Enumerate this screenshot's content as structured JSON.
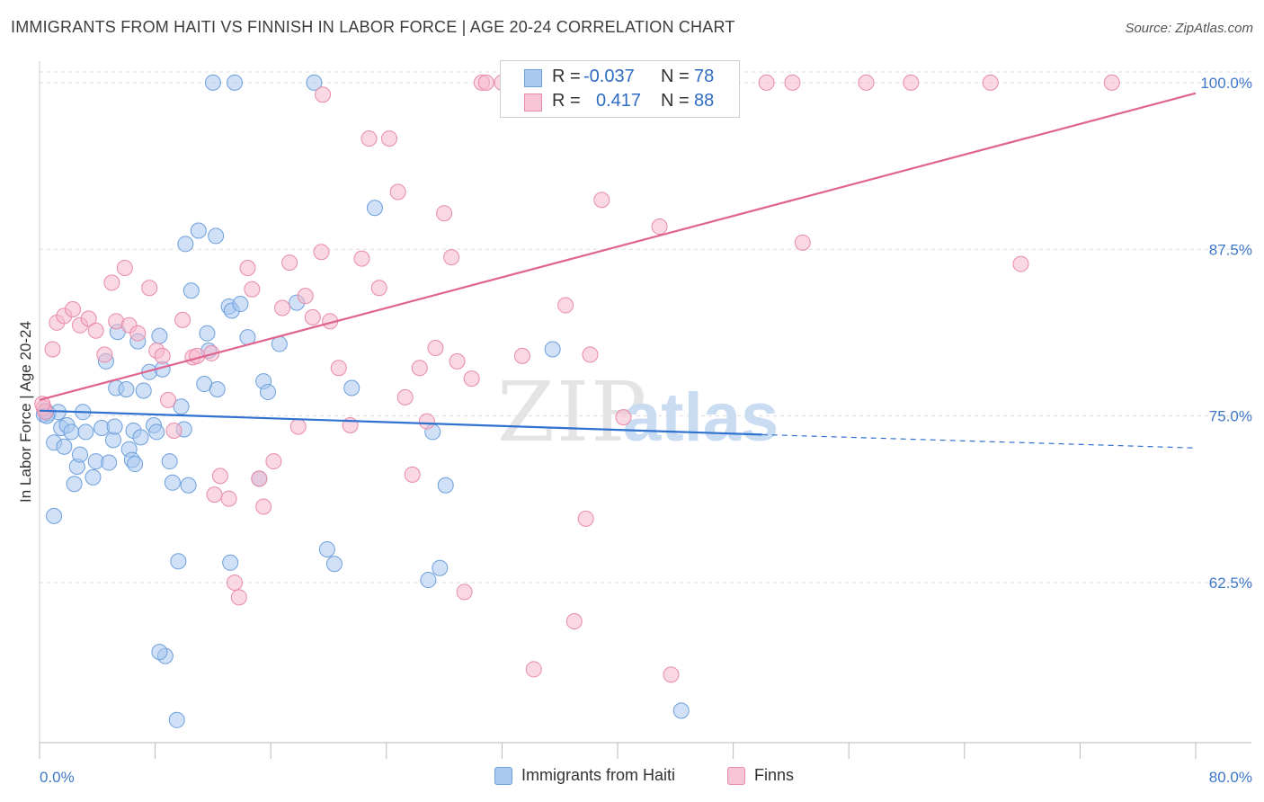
{
  "title": "IMMIGRANTS FROM HAITI VS FINNISH IN LABOR FORCE | AGE 20-24 CORRELATION CHART",
  "source": "Source: ZipAtlas.com",
  "watermark": {
    "zip": "ZIP",
    "atlas": "atlas"
  },
  "colors": {
    "blue_fill": "#aac8f0",
    "blue_stroke": "#6d9fdc",
    "blue_line": "#2f72d0",
    "pink_fill": "#f6b8cc",
    "pink_stroke": "#e88aa8",
    "pink_line": "#e0648d",
    "tick_label": "#3f77c8",
    "grid": "#dddddd"
  },
  "stats_box": {
    "rows": [
      {
        "r_label": "R =",
        "r_value": "-0.037",
        "n_label": "N =",
        "n_value": "78"
      },
      {
        "r_label": "R =",
        "r_value": "0.417",
        "n_label": "N =",
        "n_value": "88"
      }
    ]
  },
  "chart_data": {
    "type": "scatter",
    "xlabel": "",
    "ylabel": "In Labor Force | Age 20-24",
    "xlim": [
      0,
      80
    ],
    "ylim": [
      50.5,
      100.8
    ],
    "x_tick_labels": [
      "0.0%",
      "80.0%"
    ],
    "y_ticks": [
      62.5,
      75.0,
      87.5,
      100.0
    ],
    "y_tick_labels": [
      "62.5%",
      "75.0%",
      "87.5%",
      "100.0%"
    ],
    "grid": "horizontal dashed",
    "legend_placement": "bottom-center",
    "series": [
      {
        "name": "Immigrants from Haiti",
        "trend": {
          "x": [
            0,
            50
          ],
          "y": [
            75.4,
            73.6
          ],
          "dashed_to": [
            80,
            72.6
          ]
        },
        "points": [
          [
            0.3,
            75.1
          ],
          [
            0.4,
            75.4
          ],
          [
            0.6,
            75.2
          ],
          [
            1.0,
            67.5
          ],
          [
            1.0,
            73.0
          ],
          [
            1.3,
            75.3
          ],
          [
            1.5,
            74.1
          ],
          [
            1.7,
            72.7
          ],
          [
            1.9,
            74.3
          ],
          [
            2.2,
            73.8
          ],
          [
            2.4,
            69.9
          ],
          [
            2.6,
            71.2
          ],
          [
            2.8,
            72.1
          ],
          [
            3.0,
            75.3
          ],
          [
            3.2,
            73.8
          ],
          [
            3.7,
            70.4
          ],
          [
            3.9,
            71.6
          ],
          [
            4.3,
            74.1
          ],
          [
            4.6,
            79.1
          ],
          [
            4.8,
            71.5
          ],
          [
            5.1,
            73.2
          ],
          [
            5.2,
            74.2
          ],
          [
            5.4,
            81.3
          ],
          [
            5.3,
            77.1
          ],
          [
            6.0,
            77.0
          ],
          [
            6.2,
            72.5
          ],
          [
            6.4,
            71.7
          ],
          [
            6.5,
            73.9
          ],
          [
            6.6,
            71.4
          ],
          [
            6.8,
            80.6
          ],
          [
            7.0,
            73.4
          ],
          [
            7.2,
            76.9
          ],
          [
            7.6,
            78.3
          ],
          [
            7.9,
            74.3
          ],
          [
            8.1,
            73.8
          ],
          [
            8.3,
            81.0
          ],
          [
            8.5,
            78.5
          ],
          [
            8.7,
            57.0
          ],
          [
            9.0,
            71.6
          ],
          [
            9.2,
            70.0
          ],
          [
            9.6,
            64.1
          ],
          [
            9.8,
            75.7
          ],
          [
            10.0,
            74.0
          ],
          [
            10.1,
            87.9
          ],
          [
            10.3,
            69.8
          ],
          [
            10.5,
            84.4
          ],
          [
            11.0,
            88.9
          ],
          [
            11.4,
            77.4
          ],
          [
            11.6,
            81.2
          ],
          [
            11.7,
            79.9
          ],
          [
            12.2,
            88.5
          ],
          [
            12.3,
            77.0
          ],
          [
            13.1,
            83.2
          ],
          [
            13.2,
            64.0
          ],
          [
            13.3,
            82.9
          ],
          [
            13.9,
            83.4
          ],
          [
            14.4,
            80.9
          ],
          [
            15.2,
            70.3
          ],
          [
            15.5,
            77.6
          ],
          [
            15.8,
            76.8
          ],
          [
            16.6,
            80.4
          ],
          [
            17.8,
            83.5
          ],
          [
            19.9,
            65.0
          ],
          [
            20.4,
            63.9
          ],
          [
            21.6,
            77.1
          ],
          [
            23.2,
            90.6
          ],
          [
            26.9,
            62.7
          ],
          [
            27.2,
            73.8
          ],
          [
            27.7,
            63.6
          ],
          [
            28.1,
            69.8
          ],
          [
            35.5,
            80.0
          ],
          [
            8.3,
            57.3
          ],
          [
            9.5,
            52.2
          ],
          [
            44.4,
            52.9
          ],
          [
            12.0,
            100.0
          ],
          [
            13.5,
            100.0
          ],
          [
            19.0,
            100.0
          ],
          [
            0.5,
            75.0
          ]
        ]
      },
      {
        "name": "Finns",
        "trend": {
          "x": [
            0,
            80
          ],
          "y": [
            76.2,
            99.2
          ]
        },
        "points": [
          [
            0.3,
            75.6
          ],
          [
            0.4,
            75.3
          ],
          [
            0.9,
            80.0
          ],
          [
            1.2,
            82.0
          ],
          [
            1.7,
            82.5
          ],
          [
            2.3,
            83.0
          ],
          [
            2.8,
            81.8
          ],
          [
            3.4,
            82.3
          ],
          [
            3.9,
            81.4
          ],
          [
            4.5,
            79.6
          ],
          [
            5.0,
            85.0
          ],
          [
            5.3,
            82.1
          ],
          [
            5.9,
            86.1
          ],
          [
            6.2,
            81.8
          ],
          [
            6.8,
            81.2
          ],
          [
            7.6,
            84.6
          ],
          [
            8.1,
            79.9
          ],
          [
            8.5,
            79.5
          ],
          [
            8.9,
            76.2
          ],
          [
            9.3,
            73.9
          ],
          [
            9.9,
            82.2
          ],
          [
            10.6,
            79.4
          ],
          [
            10.9,
            79.5
          ],
          [
            11.9,
            79.7
          ],
          [
            12.1,
            69.1
          ],
          [
            12.5,
            70.5
          ],
          [
            13.1,
            68.8
          ],
          [
            13.8,
            61.4
          ],
          [
            14.4,
            86.1
          ],
          [
            14.7,
            84.5
          ],
          [
            15.2,
            70.3
          ],
          [
            15.5,
            68.2
          ],
          [
            16.2,
            71.6
          ],
          [
            16.8,
            83.1
          ],
          [
            17.3,
            86.5
          ],
          [
            17.9,
            74.2
          ],
          [
            18.4,
            84.0
          ],
          [
            18.9,
            82.4
          ],
          [
            19.5,
            87.3
          ],
          [
            20.1,
            82.1
          ],
          [
            20.7,
            78.6
          ],
          [
            21.5,
            74.3
          ],
          [
            22.3,
            86.8
          ],
          [
            22.8,
            95.8
          ],
          [
            23.5,
            84.6
          ],
          [
            24.2,
            95.8
          ],
          [
            24.8,
            91.8
          ],
          [
            25.3,
            76.4
          ],
          [
            25.8,
            70.6
          ],
          [
            26.3,
            78.6
          ],
          [
            26.8,
            74.6
          ],
          [
            27.4,
            80.1
          ],
          [
            28.0,
            90.2
          ],
          [
            28.5,
            86.9
          ],
          [
            28.9,
            79.1
          ],
          [
            29.4,
            61.8
          ],
          [
            29.9,
            77.8
          ],
          [
            33.4,
            79.5
          ],
          [
            34.2,
            56.0
          ],
          [
            36.4,
            83.3
          ],
          [
            37.0,
            59.6
          ],
          [
            37.8,
            67.3
          ],
          [
            38.1,
            79.6
          ],
          [
            38.9,
            91.2
          ],
          [
            40.4,
            74.9
          ],
          [
            42.9,
            89.2
          ],
          [
            43.7,
            55.6
          ],
          [
            52.8,
            88.0
          ],
          [
            67.9,
            86.4
          ],
          [
            19.6,
            99.1
          ],
          [
            30.6,
            100.0
          ],
          [
            30.9,
            100.0
          ],
          [
            32.0,
            100.0
          ],
          [
            42.6,
            100.0
          ],
          [
            43.5,
            100.0
          ],
          [
            44.1,
            100.0
          ],
          [
            44.6,
            100.0
          ],
          [
            50.3,
            100.0
          ],
          [
            52.1,
            100.0
          ],
          [
            57.2,
            100.0
          ],
          [
            60.3,
            100.0
          ],
          [
            65.8,
            100.0
          ],
          [
            74.2,
            100.0
          ],
          [
            33.0,
            100.0
          ],
          [
            35.3,
            100.0
          ],
          [
            38.9,
            100.0
          ],
          [
            13.5,
            62.5
          ],
          [
            0.2,
            75.9
          ]
        ]
      }
    ]
  }
}
